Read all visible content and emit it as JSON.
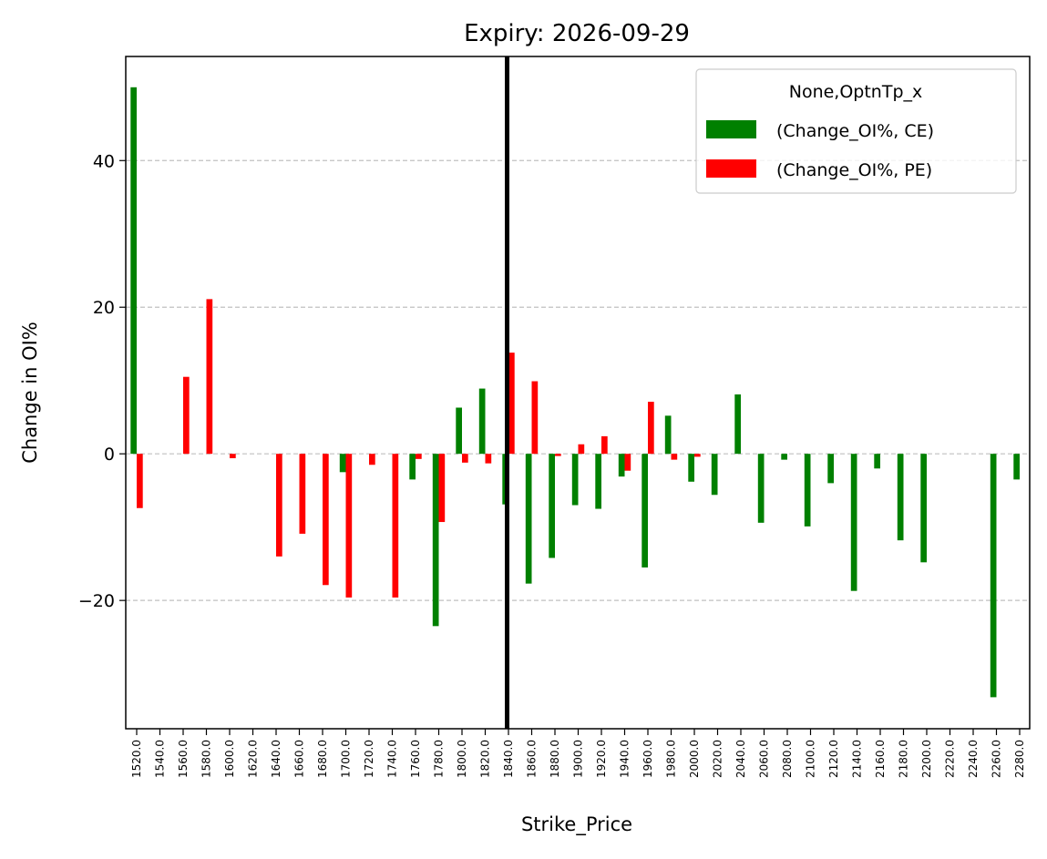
{
  "chart_data": {
    "type": "bar",
    "title": "Expiry: 2026-09-29",
    "xlabel": "Strike_Price",
    "ylabel": "Change in OI%",
    "ylim": [
      -37.5,
      54.2
    ],
    "yticks": [
      -20,
      0,
      20,
      40
    ],
    "ytick_labels": [
      "−20",
      "0",
      "20",
      "40"
    ],
    "grid": "y-dashed",
    "legend": {
      "title": "None,OptnTp_x",
      "placement": "top-right"
    },
    "reference_line": {
      "x": "1840.0",
      "color": "#000000"
    },
    "categories": [
      "1520.0",
      "1540.0",
      "1560.0",
      "1580.0",
      "1600.0",
      "1620.0",
      "1640.0",
      "1660.0",
      "1680.0",
      "1700.0",
      "1720.0",
      "1740.0",
      "1760.0",
      "1780.0",
      "1800.0",
      "1820.0",
      "1840.0",
      "1860.0",
      "1880.0",
      "1900.0",
      "1920.0",
      "1940.0",
      "1960.0",
      "1980.0",
      "2000.0",
      "2020.0",
      "2040.0",
      "2060.0",
      "2080.0",
      "2100.0",
      "2120.0",
      "2140.0",
      "2160.0",
      "2180.0",
      "2200.0",
      "2220.0",
      "2240.0",
      "2260.0",
      "2280.0"
    ],
    "series": [
      {
        "name": "(Change_OI%, CE)",
        "color": "#008000",
        "values": [
          50.0,
          null,
          null,
          null,
          null,
          null,
          null,
          null,
          null,
          -2.5,
          null,
          null,
          -3.5,
          -23.5,
          6.3,
          8.9,
          -6.9,
          -17.7,
          -14.2,
          -7.0,
          -7.5,
          -3.1,
          -15.5,
          5.2,
          -3.8,
          -5.6,
          8.1,
          -9.4,
          -0.8,
          -9.9,
          -4.0,
          -18.7,
          -2.0,
          -11.8,
          -14.8,
          null,
          null,
          -33.2,
          -3.5
        ]
      },
      {
        "name": "(Change_OI%, PE)",
        "color": "#ff0000",
        "values": [
          -7.4,
          null,
          10.5,
          21.1,
          -0.6,
          null,
          -14.0,
          -10.9,
          -17.9,
          -19.6,
          -1.5,
          -19.6,
          -0.7,
          -9.3,
          -1.2,
          -1.3,
          13.8,
          9.9,
          -0.3,
          1.3,
          2.4,
          -2.3,
          7.1,
          -0.8,
          -0.4,
          null,
          null,
          null,
          null,
          null,
          null,
          null,
          null,
          null,
          null,
          null,
          null,
          null,
          null
        ]
      }
    ]
  }
}
